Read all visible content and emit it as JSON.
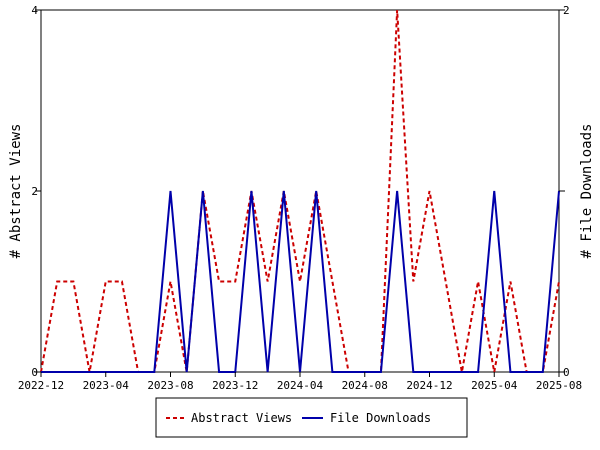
{
  "chart_data": {
    "type": "line",
    "x_tick_labels": [
      "2022-12",
      "2023-04",
      "2023-08",
      "2023-12",
      "2024-04",
      "2024-08",
      "2024-12",
      "2025-04",
      "2025-08"
    ],
    "months": [
      "2022-12",
      "2023-01",
      "2023-02",
      "2023-03",
      "2023-04",
      "2023-05",
      "2023-06",
      "2023-07",
      "2023-08",
      "2023-09",
      "2023-10",
      "2023-11",
      "2023-12",
      "2024-01",
      "2024-02",
      "2024-03",
      "2024-04",
      "2024-05",
      "2024-06",
      "2024-07",
      "2024-08",
      "2024-09",
      "2024-10",
      "2024-11",
      "2024-12",
      "2025-01",
      "2025-02",
      "2025-03",
      "2025-04",
      "2025-05",
      "2025-06",
      "2025-07",
      "2025-08"
    ],
    "series": [
      {
        "name": "Abstract Views",
        "axis": "left",
        "color": "#cc0000",
        "dash": true,
        "values": [
          0,
          1,
          1,
          0,
          1,
          1,
          0,
          0,
          1,
          0,
          2,
          1,
          1,
          2,
          1,
          2,
          1,
          2,
          1,
          0,
          0,
          0,
          4,
          1,
          2,
          1,
          0,
          1,
          0,
          1,
          0,
          0,
          1
        ]
      },
      {
        "name": "File Downloads",
        "axis": "right",
        "color": "#0000aa",
        "dash": false,
        "values": [
          0,
          0,
          0,
          0,
          0,
          0,
          0,
          0,
          1,
          0,
          1,
          0,
          0,
          1,
          0,
          1,
          0,
          1,
          0,
          0,
          0,
          0,
          1,
          0,
          0,
          0,
          0,
          0,
          1,
          0,
          0,
          0,
          1
        ]
      }
    ],
    "ylabel_left": "# Abstract Views",
    "ylabel_right": "# File Downloads",
    "ylim_left": [
      0,
      4
    ],
    "ylim_right": [
      0,
      2
    ],
    "yticks_left": [
      "0",
      "2",
      "4"
    ],
    "yticks_right": [
      "0",
      "1",
      "2"
    ],
    "yticks_right_shown": [
      "0",
      "2"
    ],
    "legend_position": "bottom-center",
    "grid": false
  }
}
